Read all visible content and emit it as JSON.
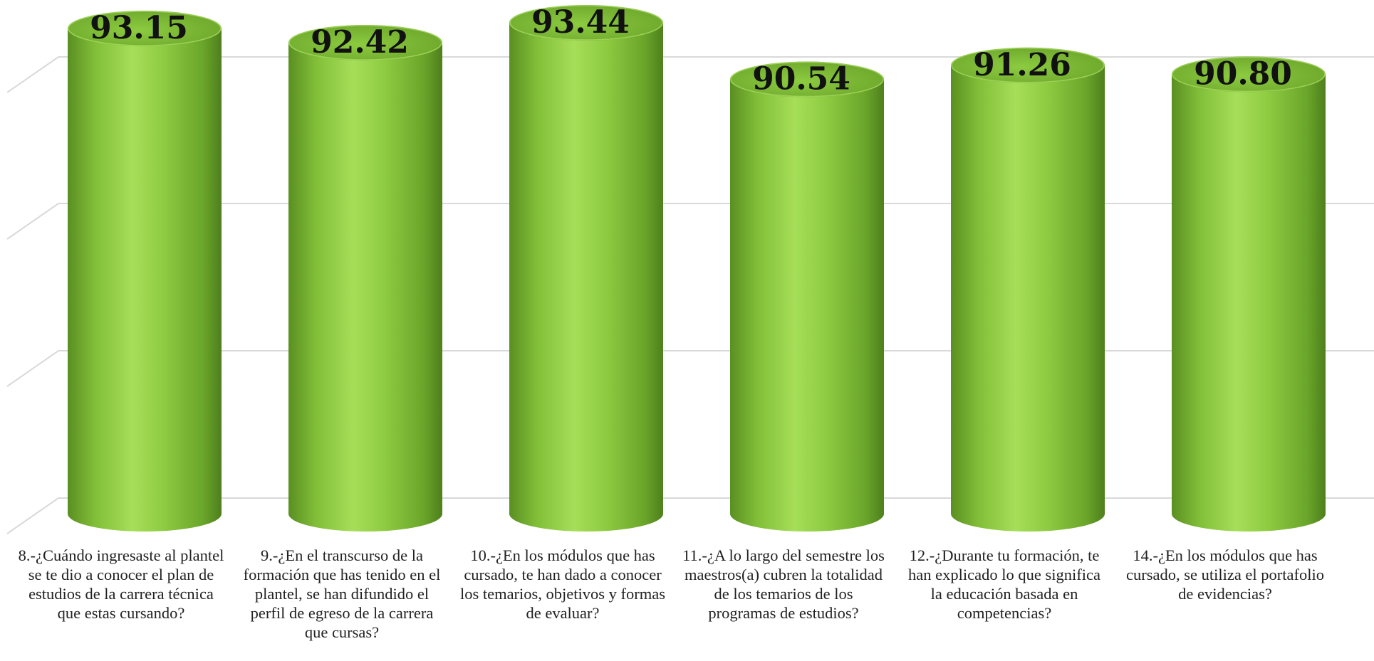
{
  "chart_data": {
    "type": "bar",
    "categories": [
      "8.-¿Cuándo ingresaste al plantel se te dio a conocer el plan de estudios de la carrera técnica que estas cursando?",
      "9.-¿En el transcurso de la formación que has tenido en el plantel, se han difundido el perfil de egreso de la carrera que cursas?",
      "10.-¿En los módulos que has cursado, te han dado a conocer los temarios, objetivos y formas de evaluar?",
      "11.-¿A lo largo del semestre los maestros(a) cubren la totalidad de los temarios de los programas de estudios?",
      "12.-¿Durante tu formación, te han explicado lo que significa la educación basada en competencias?",
      "14.-¿En los módulos que has cursado, se utiliza el portafolio de evidencias?"
    ],
    "values": [
      93.15,
      92.42,
      93.44,
      90.54,
      91.26,
      90.8
    ],
    "data_labels": [
      "93.15",
      "92.42",
      "93.44",
      "90.54",
      "91.26",
      "90.80"
    ],
    "title": "",
    "xlabel": "",
    "ylabel": "",
    "style": "3d-cylinder",
    "grid": true,
    "bar_color": "#8cc83c",
    "bar_highlight": "#a8e05a",
    "bar_shadow": "#5a8f22",
    "gridline_color": "#d9d9d9"
  }
}
